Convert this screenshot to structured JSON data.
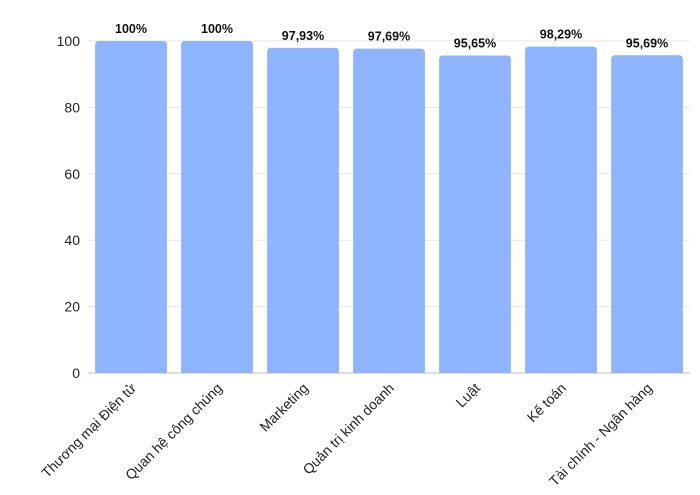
{
  "chart_data": {
    "type": "bar",
    "categories": [
      "Thương mại Điện tử",
      "Quan hệ công chúng",
      "Marketing",
      "Quản trị kinh doanh",
      "Luật",
      "Kế toán",
      "Tài chính - Ngân hàng"
    ],
    "values": [
      100,
      100,
      97.93,
      97.69,
      95.65,
      98.29,
      95.69
    ],
    "data_labels": [
      "100%",
      "100%",
      "97,93%",
      "97,69%",
      "95,65%",
      "98,29%",
      "95,69%"
    ],
    "ylim": [
      0,
      100
    ],
    "yticks": [
      0,
      20,
      40,
      60,
      80,
      100
    ],
    "grid": true,
    "bar_color": "#8fb4ff"
  }
}
